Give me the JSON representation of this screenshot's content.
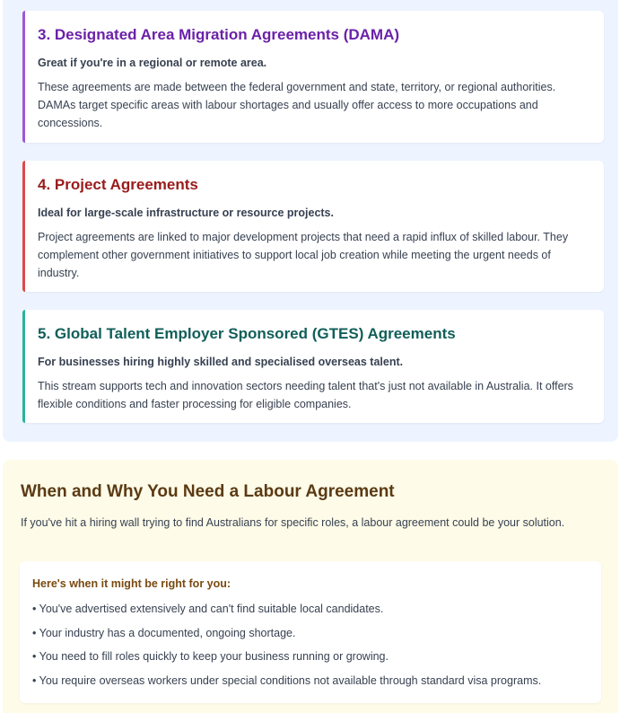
{
  "agreements": [
    {
      "title": "3. Designated Area Migration Agreements (DAMA)",
      "lead": "Great if you're in a regional or remote area.",
      "description": "These agreements are made between the federal government and state, territory, or regional authorities. DAMAs target specific areas with labour shortages and usually offer access to more occupations and concessions.",
      "accent_color": "#9b59d6",
      "title_color": "#6b21a8"
    },
    {
      "title": "4. Project Agreements",
      "lead": "Ideal for large-scale infrastructure or resource projects.",
      "description": "Project agreements are linked to major development projects that need a rapid influx of skilled labour. They complement other government initiatives to support local job creation while meeting the urgent needs of industry.",
      "accent_color": "#dc4a4a",
      "title_color": "#991b1b"
    },
    {
      "title": "5. Global Talent Employer Sponsored (GTES) Agreements",
      "lead": "For businesses hiring highly skilled and specialised overseas talent.",
      "description": "This stream supports tech and innovation sectors needing talent that's just not available in Australia. It offers flexible conditions and faster processing for eligible companies.",
      "accent_color": "#2bb39a",
      "title_color": "#115e59"
    }
  ],
  "when_section": {
    "heading": "When and Why You Need a Labour Agreement",
    "intro": "If you've hit a hiring wall trying to find Australians for specific roles, a labour agreement could be your solution.",
    "list_heading": "Here's when it might be right for you:",
    "items": [
      "• You've advertised extensively and can't find suitable local candidates.",
      "• Your industry has a documented, ongoing shortage.",
      "• You need to fill roles quickly to keep your business running or growing.",
      "• You require overseas workers under special conditions not available through standard visa programs."
    ]
  }
}
